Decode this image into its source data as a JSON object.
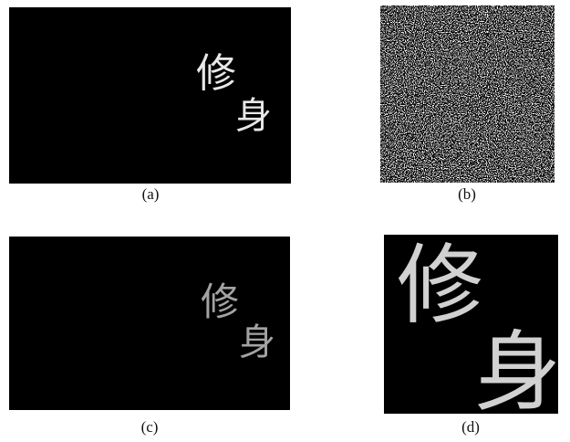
{
  "panels": [
    {
      "label": "(a)",
      "glyphs": [
        "修",
        "身"
      ]
    },
    {
      "label": "(b)"
    },
    {
      "label": "(c)",
      "glyphs": [
        "修",
        "身"
      ]
    },
    {
      "label": "(d)",
      "glyphs": [
        "修",
        "身"
      ]
    }
  ]
}
